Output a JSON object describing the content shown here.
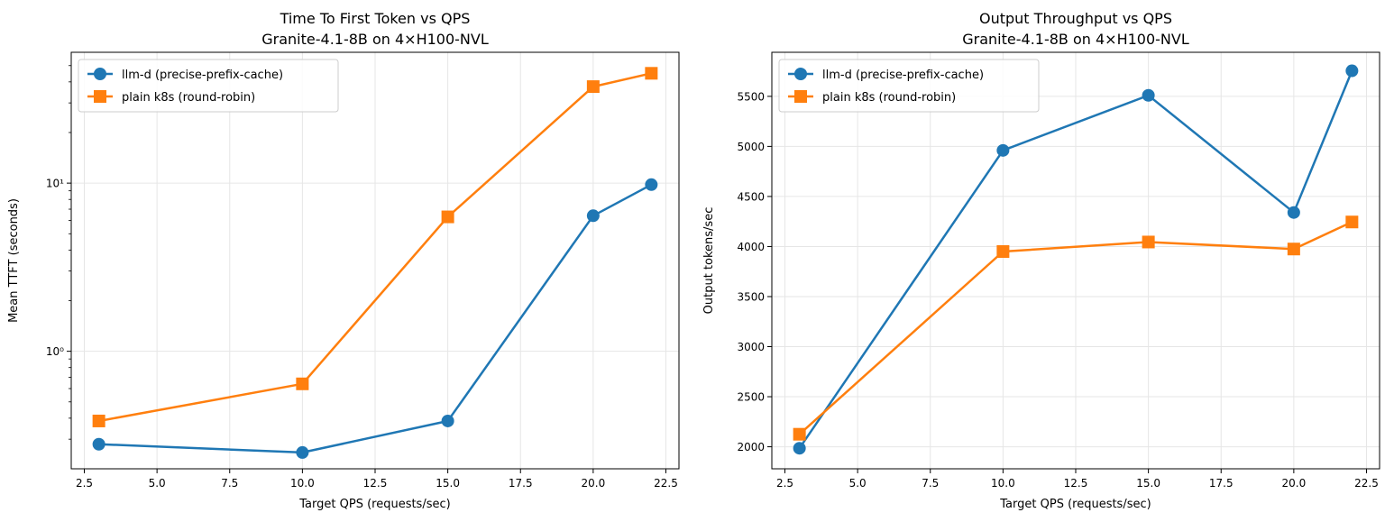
{
  "chart_data": [
    {
      "type": "line",
      "title": "Time To First Token vs QPS",
      "subtitle": "Granite-4.1-8B on 4×H100-NVL",
      "xlabel": "Target QPS (requests/sec)",
      "ylabel": "Mean TTFT (seconds)",
      "yscale": "log",
      "xlim": [
        2.05,
        22.95
      ],
      "ylim": [
        0.2,
        60
      ],
      "xticks": [
        2.5,
        5.0,
        7.5,
        10.0,
        12.5,
        15.0,
        17.5,
        20.0,
        22.5
      ],
      "xtick_labels": [
        "2.5",
        "5.0",
        "7.5",
        "10.0",
        "12.5",
        "15.0",
        "17.5",
        "20.0",
        "22.5"
      ],
      "yticks": [
        1,
        10
      ],
      "ytick_labels": [
        "10⁰",
        "10¹"
      ],
      "grid": true,
      "legend_position": "top-left",
      "x": [
        3,
        10,
        15,
        20,
        22
      ],
      "series": [
        {
          "name": "llm-d (precise-prefix-cache)",
          "color": "#1f77b4",
          "marker": "circle",
          "values": [
            0.28,
            0.25,
            0.385,
            6.4,
            9.8
          ]
        },
        {
          "name": "plain k8s (round-robin)",
          "color": "#ff7f0e",
          "marker": "square",
          "values": [
            0.385,
            0.64,
            6.3,
            37.5,
            45
          ]
        }
      ]
    },
    {
      "type": "line",
      "title": "Output Throughput vs QPS",
      "subtitle": "Granite-4.1-8B on 4×H100-NVL",
      "xlabel": "Target QPS (requests/sec)",
      "ylabel": "Output tokens/sec",
      "yscale": "linear",
      "xlim": [
        2.05,
        22.95
      ],
      "ylim": [
        1780,
        5940
      ],
      "xticks": [
        2.5,
        5.0,
        7.5,
        10.0,
        12.5,
        15.0,
        17.5,
        20.0,
        22.5
      ],
      "xtick_labels": [
        "2.5",
        "5.0",
        "7.5",
        "10.0",
        "12.5",
        "15.0",
        "17.5",
        "20.0",
        "22.5"
      ],
      "yticks": [
        2000,
        2500,
        3000,
        3500,
        4000,
        4500,
        5000,
        5500
      ],
      "ytick_labels": [
        "2000",
        "2500",
        "3000",
        "3500",
        "4000",
        "4500",
        "5000",
        "5500"
      ],
      "grid": true,
      "legend_position": "top-left",
      "x": [
        3,
        10,
        15,
        20,
        22
      ],
      "series": [
        {
          "name": "llm-d (precise-prefix-cache)",
          "color": "#1f77b4",
          "marker": "circle",
          "values": [
            1985,
            4960,
            5510,
            4340,
            5755
          ]
        },
        {
          "name": "plain k8s (round-robin)",
          "color": "#ff7f0e",
          "marker": "square",
          "values": [
            2125,
            3950,
            4045,
            3975,
            4245
          ]
        }
      ]
    }
  ]
}
